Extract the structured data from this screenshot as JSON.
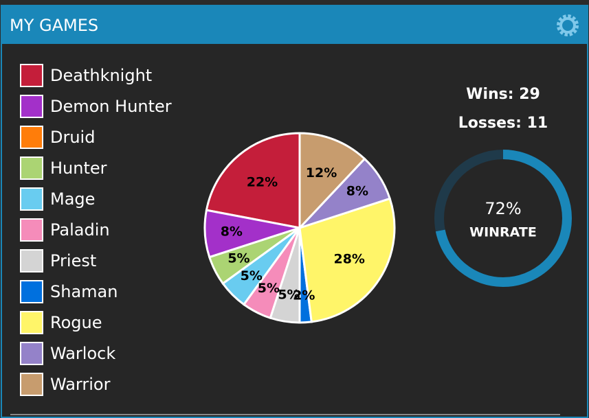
{
  "header": {
    "title": "MY GAMES"
  },
  "chart_data": {
    "type": "pie",
    "categories": [
      "Deathknight",
      "Demon Hunter",
      "Druid",
      "Hunter",
      "Mage",
      "Paladin",
      "Priest",
      "Shaman",
      "Rogue",
      "Warlock",
      "Warrior"
    ],
    "values": [
      22,
      8,
      0,
      5,
      5,
      5,
      5,
      2,
      28,
      8,
      12
    ],
    "value_labels": [
      "22%",
      "8%",
      null,
      "5%",
      "5%",
      "5%",
      "5%",
      "2%",
      "28%",
      "8%",
      "12%"
    ],
    "colors": [
      "#c41e3a",
      "#a330c9",
      "#ff7d0a",
      "#abd473",
      "#69ccf0",
      "#f58cba",
      "#d4d4d4",
      "#0070de",
      "#fff569",
      "#9482c9",
      "#c79c6e"
    ]
  },
  "stats": {
    "wins": "Wins: 29",
    "losses": "Losses: 11",
    "winrate": {
      "value": 72,
      "label": "72%"
    },
    "winrate_caption": "WINRATE"
  }
}
